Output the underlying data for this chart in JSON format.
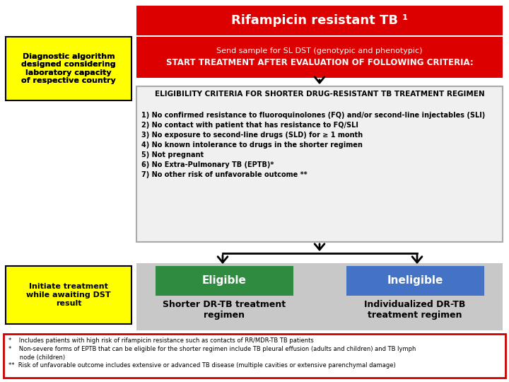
{
  "title": "Rifampicin resistant TB ¹",
  "title_bg": "#dd0000",
  "title_text_color": "#ffffff",
  "send_line1": "Send sample for SL DST (genotypic and phenotypic)",
  "send_line2": "START TREATMENT AFTER EVALUATION OF FOLLOWING CRITERIA:",
  "send_bg": "#dd0000",
  "send_text_color": "#ffffff",
  "elig_title": "ELIGIBILITY CRITERIA FOR SHORTER DRUG-RESISTANT TB TREATMENT REGIMEN",
  "elig_items": [
    "1) No confirmed resistance to fluoroquinolones (FQ) and/or second-line injectables (SLI)",
    "2) No contact with patient that has resistance to FQ/SLI",
    "3) No exposure to second-line drugs (SLD) for ≥ 1 month",
    "4) No known intolerance to drugs in the shorter regimen",
    "5) Not pregnant",
    "6) No Extra-Pulmonary TB (EPTB)*",
    "7) No other risk of unfavorable outcome **"
  ],
  "elig_bg": "#f0f0f0",
  "elig_border": "#aaaaaa",
  "eligible_label": "Eligible",
  "eligible_bg": "#2e8b40",
  "eligible_text_color": "#ffffff",
  "eligible_sub": "Shorter DR-TB treatment\nregimen",
  "ineligible_label": "Ineligible",
  "ineligible_bg": "#4472c4",
  "ineligible_text_color": "#ffffff",
  "ineligible_sub": "Individualized DR-TB\ntreatment regimen",
  "ybox1_text": "Diagnostic algorithm\ndesigned considering\nlaboratory capacity\nof respective country",
  "ybox1_bg": "#ffff00",
  "ybox1_border": "#000000",
  "ybox2_text": "Initiate treatment\nwhile awaiting DST\nresult",
  "ybox2_bg": "#ffff00",
  "ybox2_border": "#000000",
  "bottom_bg": "#c8c8c8",
  "footnote_text_star1": "*    Includes patients with high risk of rifampicin resistance such as contacts of RR/MDR-TB TB patients",
  "footnote_text_star2": "*    Non-severe forms of EPTB that can be eligible for the shorter regimen include TB pleural effusion (adults and children) and TB lymph\n      node (children)",
  "footnote_text_star3": "**  Risk of unfavorable outcome includes extensive or advanced TB disease (multiple cavities or extensive parenchymal damage)",
  "footnote_border": "#cc0000",
  "footnote_bg": "#ffffff",
  "arrow_color": "#000000"
}
